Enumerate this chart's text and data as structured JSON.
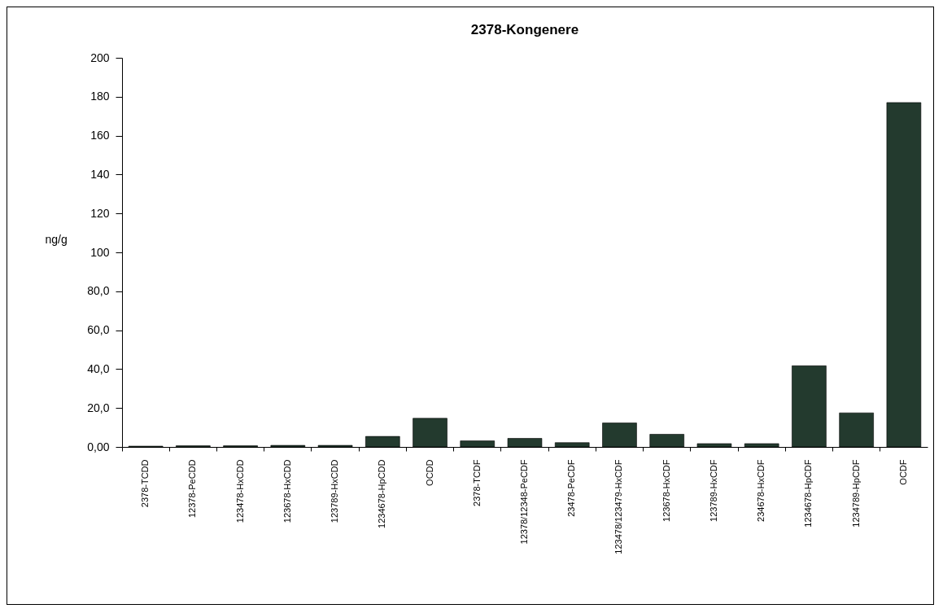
{
  "chart_data": {
    "type": "bar",
    "title": "2378-Kongenere",
    "ylabel": "ng/g",
    "categories": [
      "2378-TCDD",
      "12378-PeCDD",
      "123478-HxCDD",
      "123678-HxCDD",
      "123789-HxCDD",
      "1234678-HpCDD",
      "OCDD",
      "2378-TCDF",
      "12378/12348-PeCDF",
      "23478-PeCDF",
      "123478/123479-HxCDF",
      "123678-HxCDF",
      "123789-HxCDF",
      "234678-HxCDF",
      "1234678-HpCDF",
      "1234789-HpCDF",
      "OCDF"
    ],
    "values": [
      0.4,
      0.6,
      0.6,
      0.8,
      0.8,
      5.4,
      14.7,
      3.1,
      4.4,
      2.2,
      12.3,
      6.5,
      1.7,
      1.7,
      41.7,
      17.5,
      177
    ],
    "color": "#233a2e",
    "ylim": [
      0,
      200
    ],
    "yticks": [
      {
        "value": 0,
        "label": "0,00"
      },
      {
        "value": 20,
        "label": "20,0"
      },
      {
        "value": 40,
        "label": "40,0"
      },
      {
        "value": 60,
        "label": "60,0"
      },
      {
        "value": 80,
        "label": "80,0"
      },
      100,
      120,
      140,
      160,
      180,
      200
    ],
    "grid": false
  }
}
